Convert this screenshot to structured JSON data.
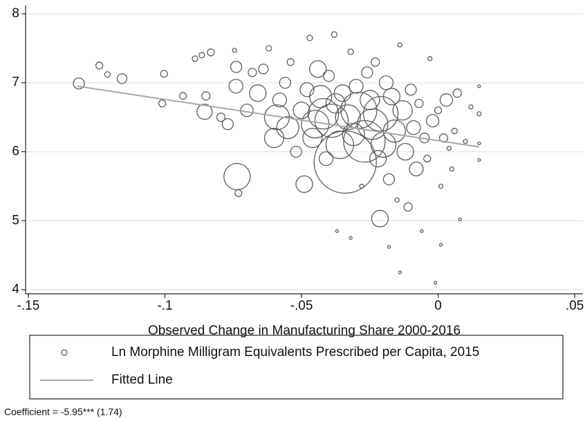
{
  "chart_data": {
    "type": "scatter",
    "x_label": "Observed Change in Manufacturing Share 2000-2016",
    "note": "Coefficient = -5.95*** (1.74)",
    "xlim": [
      -0.151,
      0.053
    ],
    "ylim": [
      3.94,
      8.12
    ],
    "xticks": [
      {
        "value": -0.15,
        "label": "-.15"
      },
      {
        "value": -0.1,
        "label": "-.1"
      },
      {
        "value": -0.05,
        "label": "-.05"
      },
      0,
      {
        "value": 0.05,
        "label": ".05"
      }
    ],
    "yticks": [
      4,
      5,
      6,
      7,
      8
    ],
    "grid": true,
    "series": [
      {
        "name": "Ln Morphine Milligram Equivalents Prescribed per Capita, 2015",
        "kind": "scatter",
        "color": "#5c5c5c",
        "x": [
          -0.1315,
          -0.124,
          -0.121,
          -0.1157,
          -0.1003,
          -0.101,
          -0.0934,
          -0.0855,
          -0.0832,
          -0.0865,
          -0.089,
          -0.0736,
          -0.0731,
          -0.0739,
          -0.0745,
          -0.085,
          -0.0795,
          -0.077,
          -0.074,
          -0.07,
          -0.068,
          -0.066,
          -0.064,
          -0.062,
          -0.06,
          -0.059,
          -0.058,
          -0.056,
          -0.055,
          -0.054,
          -0.052,
          -0.05,
          -0.049,
          -0.048,
          -0.047,
          -0.046,
          -0.045,
          -0.044,
          -0.043,
          -0.042,
          -0.041,
          -0.04,
          -0.039,
          -0.038,
          -0.0375,
          -0.037,
          -0.036,
          -0.035,
          -0.034,
          -0.033,
          -0.032,
          -0.032,
          -0.031,
          -0.03,
          -0.029,
          -0.028,
          -0.027,
          -0.026,
          -0.025,
          -0.024,
          -0.023,
          -0.022,
          -0.0213,
          -0.021,
          -0.02,
          -0.019,
          -0.018,
          -0.017,
          -0.016,
          -0.015,
          -0.014,
          -0.014,
          -0.013,
          -0.012,
          -0.011,
          -0.01,
          -0.009,
          -0.008,
          -0.007,
          -0.006,
          -0.005,
          -0.004,
          -0.003,
          -0.002,
          -0.001,
          0,
          0.001,
          0.001,
          0.002,
          0.003,
          0.004,
          0.006,
          0.007,
          0.008,
          0.01,
          0.012,
          0.015,
          0.015,
          0.015,
          0.015,
          0.005,
          -0.018
        ],
        "values": [
          6.99,
          7.25,
          7.12,
          7.06,
          7.13,
          6.7,
          6.81,
          6.58,
          7.44,
          7.4,
          7.35,
          5.64,
          5.4,
          7.23,
          7.47,
          6.81,
          6.5,
          6.4,
          6.95,
          6.6,
          7.15,
          6.85,
          7.2,
          7.5,
          6.2,
          6.5,
          6.75,
          7,
          6.35,
          7.3,
          6,
          6.6,
          5.53,
          6.9,
          7.65,
          6.2,
          6.4,
          7.2,
          6.8,
          6.55,
          5.9,
          7.1,
          6.45,
          7.7,
          6.7,
          4.85,
          6.1,
          6.85,
          5.85,
          6.5,
          7.45,
          4.75,
          6.25,
          6.95,
          6.6,
          5.5,
          6.15,
          7.15,
          6.75,
          6.4,
          7.3,
          5.9,
          5.03,
          6.55,
          6.1,
          7,
          5.6,
          6.8,
          6.3,
          5.3,
          7.55,
          4.25,
          6.6,
          6,
          5.2,
          6.9,
          6.35,
          5.75,
          6.7,
          4.85,
          6.2,
          5.9,
          7.35,
          6.45,
          4.1,
          6.6,
          4.65,
          5.5,
          6.2,
          6.75,
          6.05,
          6.3,
          6.85,
          5.02,
          6.15,
          6.65,
          6.55,
          6.12,
          5.88,
          6.95,
          5.75,
          4.62
        ],
        "sizes": [
          8,
          5,
          4,
          7,
          5,
          5,
          5,
          11,
          5,
          4,
          4,
          19,
          5,
          8,
          3,
          6,
          6,
          8,
          10,
          9,
          6,
          12,
          7,
          4,
          14,
          18,
          10,
          8,
          16,
          5,
          8,
          12,
          12,
          10,
          4,
          14,
          20,
          12,
          16,
          22,
          10,
          8,
          24,
          4,
          14,
          2,
          20,
          12,
          45,
          18,
          4,
          2,
          16,
          10,
          26,
          3,
          30,
          8,
          14,
          22,
          6,
          12,
          12,
          25,
          18,
          10,
          8,
          12,
          16,
          3,
          3,
          2,
          14,
          12,
          6,
          8,
          10,
          10,
          6,
          2,
          7,
          5,
          3,
          9,
          2,
          5,
          2,
          3,
          6,
          9,
          3,
          4,
          6,
          2,
          3,
          3,
          3,
          2,
          2,
          2,
          3,
          2
        ]
      },
      {
        "name": "Fitted Line",
        "kind": "line",
        "color": "#a6a6a6",
        "x": [
          -0.132,
          0.015
        ],
        "values": [
          6.95,
          6.07
        ]
      }
    ]
  }
}
